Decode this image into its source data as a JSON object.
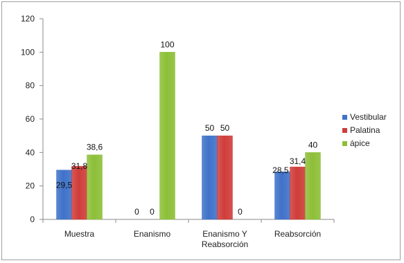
{
  "chart_data": {
    "type": "bar",
    "categories": [
      [
        "Muestra"
      ],
      [
        "Enanismo"
      ],
      [
        "Enanismo Y",
        "Reabsorción"
      ],
      [
        "Reabsorción"
      ]
    ],
    "series": [
      {
        "name": "Vestibular",
        "values": [
          29.5,
          0,
          50,
          28.5
        ],
        "labels": [
          "29,5",
          "0",
          "50",
          "28,5"
        ],
        "color": "#3f72c9"
      },
      {
        "name": "Palatina",
        "values": [
          31.8,
          0,
          50,
          31.4
        ],
        "labels": [
          "31,8",
          "0",
          "50",
          "31,4"
        ],
        "color": "#cf3d3a"
      },
      {
        "name": "ápice",
        "values": [
          38.6,
          100,
          0,
          40
        ],
        "labels": [
          "38,6",
          "100",
          "0",
          "40"
        ],
        "color": "#8dbf38"
      }
    ],
    "y_ticks": [
      "0",
      "20",
      "40",
      "60",
      "80",
      "100",
      "120"
    ],
    "ylim": [
      0,
      120
    ],
    "grid": false,
    "legend": "right"
  }
}
